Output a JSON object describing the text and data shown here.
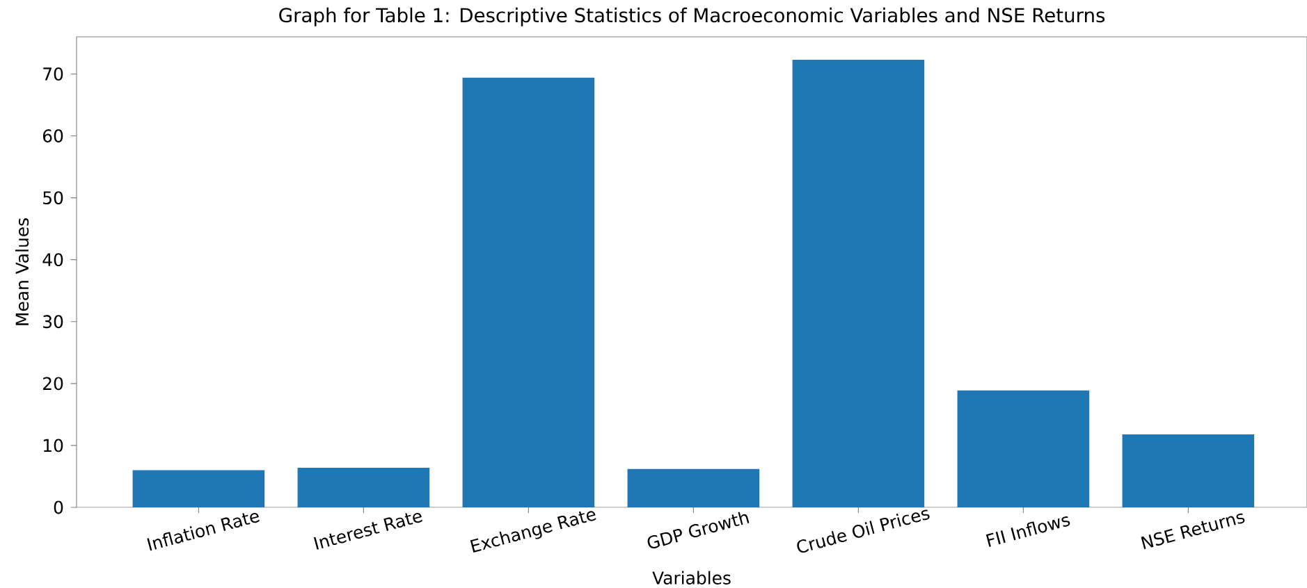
{
  "chart_data": {
    "type": "bar",
    "title": "Graph for Table 1: Descriptive Statistics of Macroeconomic Variables and NSE Returns",
    "xlabel": "Variables",
    "ylabel": "Mean Values",
    "categories": [
      "Inflation Rate",
      "Interest Rate",
      "Exchange Rate",
      "GDP Growth",
      "Crude Oil Prices",
      "FII Inflows",
      "NSE Returns"
    ],
    "values": [
      6.0,
      6.4,
      69.4,
      6.2,
      72.3,
      18.9,
      11.8
    ],
    "color": "#1f77b4",
    "ylim": [
      0,
      76
    ],
    "yticks": [
      0,
      10,
      20,
      30,
      40,
      50,
      60,
      70
    ]
  }
}
